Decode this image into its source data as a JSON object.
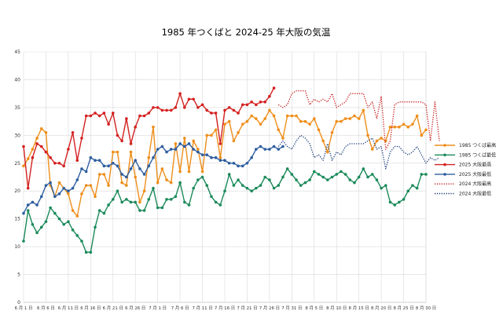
{
  "chart_data": {
    "type": "line",
    "title": "1985 年つくばと 2024-25 年大阪の気温",
    "ylim": [
      0,
      45
    ],
    "yticks": [
      0,
      5,
      10,
      15,
      20,
      25,
      30,
      35,
      40,
      45
    ],
    "x_labels": [
      "6 月 1 日",
      "6 月 6 日",
      "6 月 11 日",
      "6 月 16 日",
      "6 月 21 日",
      "6 月 26 日",
      "7 月 1 日",
      "7 月 6 日",
      "7 月 11 日",
      "7 月 16 日",
      "7 月 21 日",
      "7 月 26 日",
      "7 月 31 日",
      "8 月 5 日",
      "8 月 10 日",
      "8 月 15 日",
      "8 月 20 日",
      "8 月 25 日",
      "8 月 30 日"
    ],
    "x_count": 91,
    "grid": true,
    "legend_position": "right",
    "series": [
      {
        "name": "1985 つくば最高",
        "color": "#ee8e1a",
        "style": "solid-marker",
        "values": [
          24.5,
          25.8,
          27.5,
          29.5,
          31.2,
          30.5,
          21.0,
          19.0,
          21.5,
          20.5,
          19.5,
          16.5,
          15.5,
          19.5,
          21.0,
          21.0,
          19.0,
          23.0,
          23.0,
          21.0,
          27.0,
          27.0,
          21.5,
          21.0,
          27.0,
          22.5,
          18.0,
          20.0,
          26.0,
          31.5,
          21.5,
          24.0,
          22.0,
          21.5,
          28.5,
          23.5,
          29.5,
          23.5,
          29.0,
          27.5,
          23.5,
          30.0,
          30.0,
          31.0,
          26.0,
          32.0,
          32.5,
          29.0,
          30.5,
          32.0,
          32.5,
          33.5,
          33.0,
          32.0,
          33.0,
          34.5,
          33.5,
          31.0,
          29.5,
          33.5,
          33.5,
          33.5,
          32.5,
          32.5,
          32.0,
          33.0,
          31.0,
          29.0,
          27.0,
          30.5,
          32.5,
          32.5,
          33.0,
          33.0,
          33.5,
          33.0,
          34.5,
          30.0,
          27.5,
          29.0,
          29.5,
          29.0,
          31.5,
          31.5,
          31.5,
          32.0,
          31.5,
          32.0,
          33.5,
          30.0,
          31.0
        ]
      },
      {
        "name": "1985 つくば最低",
        "color": "#1b8a5a",
        "style": "solid-marker",
        "values": [
          11.0,
          16.5,
          14.0,
          12.5,
          13.5,
          14.5,
          17.0,
          16.0,
          15.0,
          14.0,
          14.5,
          13.0,
          12.0,
          11.0,
          9.0,
          9.0,
          13.5,
          16.5,
          16.0,
          17.5,
          18.5,
          20.0,
          18.0,
          18.5,
          18.0,
          18.0,
          16.5,
          16.5,
          18.5,
          20.5,
          17.0,
          17.0,
          18.5,
          18.5,
          19.0,
          21.5,
          18.0,
          17.5,
          20.5,
          22.0,
          22.5,
          21.0,
          19.0,
          18.0,
          17.5,
          20.0,
          23.0,
          21.0,
          22.0,
          21.0,
          20.5,
          20.0,
          20.5,
          21.0,
          22.5,
          22.0,
          20.5,
          21.0,
          22.5,
          24.0,
          23.0,
          22.0,
          21.0,
          21.5,
          22.0,
          23.5,
          23.0,
          22.5,
          22.0,
          22.5,
          23.0,
          23.5,
          23.0,
          22.0,
          21.5,
          22.5,
          24.0,
          22.5,
          23.0,
          22.0,
          20.5,
          21.0,
          18.0,
          17.5,
          18.0,
          18.5,
          20.0,
          21.0,
          20.5,
          23.0,
          23.0
        ]
      },
      {
        "name": "2025 大阪最高",
        "color": "#d42020",
        "style": "solid-marker",
        "values": [
          28.0,
          20.5,
          26.0,
          28.5,
          28.0,
          27.0,
          26.0,
          25.0,
          25.0,
          24.5,
          27.5,
          30.5,
          25.5,
          29.5,
          33.5,
          33.5,
          34.0,
          33.5,
          34.0,
          32.0,
          34.0,
          30.0,
          29.0,
          33.0,
          28.5,
          31.5,
          33.5,
          33.5,
          34.0,
          35.0,
          35.0,
          34.5,
          34.5,
          34.5,
          35.0,
          37.5,
          35.0,
          36.5,
          36.5,
          35.0,
          35.5,
          34.5,
          34.0,
          34.0,
          28.5,
          34.5,
          35.0,
          34.5,
          34.0,
          35.5,
          35.5,
          36.0,
          35.5,
          36.0,
          36.0,
          37.0,
          38.5
        ]
      },
      {
        "name": "2025 大阪最低",
        "color": "#2e5ea0",
        "style": "solid-marker",
        "values": [
          16.0,
          17.5,
          18.0,
          17.5,
          19.0,
          21.0,
          21.5,
          19.0,
          19.5,
          20.5,
          20.0,
          20.5,
          22.0,
          24.0,
          23.5,
          26.0,
          25.5,
          25.5,
          24.5,
          24.5,
          25.0,
          24.5,
          23.0,
          22.5,
          24.0,
          25.5,
          24.0,
          23.0,
          24.5,
          26.0,
          27.5,
          28.0,
          27.0,
          27.5,
          27.5,
          28.5,
          28.0,
          28.5,
          27.5,
          27.0,
          26.5,
          26.5,
          26.0,
          26.0,
          25.5,
          25.5,
          25.0,
          25.0,
          24.5,
          24.5,
          25.0,
          26.0,
          27.5,
          28.0,
          27.5,
          27.5,
          28.0,
          27.5,
          28.0
        ]
      },
      {
        "name": "2024 大阪最高",
        "color": "#c82020",
        "style": "dotted",
        "start_index": 57,
        "values": [
          35.5,
          35.0,
          35.5,
          37.5,
          38.0,
          38.0,
          38.0,
          35.5,
          36.5,
          36.0,
          36.5,
          36.0,
          37.5,
          35.0,
          35.5,
          36.0,
          37.5,
          37.5,
          37.5,
          37.5,
          35.0,
          36.0,
          33.0,
          37.0,
          27.5,
          29.0,
          35.5,
          36.0,
          36.0,
          36.0,
          36.0,
          36.0,
          36.0,
          35.5,
          29.0,
          36.0,
          29.0
        ]
      },
      {
        "name": "2024 大阪最低",
        "color": "#1e3f7a",
        "style": "dotted",
        "start_index": 57,
        "values": [
          28.0,
          29.0,
          28.0,
          27.5,
          29.0,
          30.0,
          29.5,
          28.5,
          26.0,
          26.5,
          25.5,
          28.5,
          25.5,
          27.0,
          26.5,
          28.0,
          28.5,
          28.5,
          28.5,
          28.5,
          29.0,
          29.5,
          27.5,
          28.0,
          24.0,
          27.0,
          28.0,
          28.0,
          27.0,
          26.5,
          27.0,
          28.0,
          26.5,
          25.0,
          26.0,
          25.5,
          26.0
        ]
      }
    ]
  }
}
